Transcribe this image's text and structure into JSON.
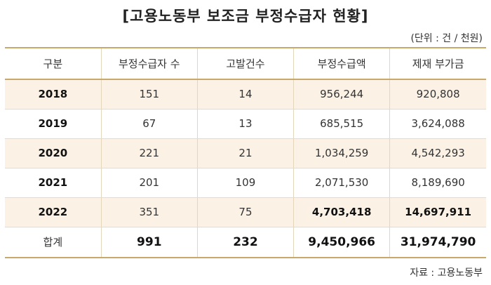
{
  "title": "[고용노동부 보조금 부정수급자 현황]",
  "unit": "(단위 : 건 / 천원)",
  "table": {
    "headers": [
      "구분",
      "부정수급자 수",
      "고발건수",
      "부정수급액",
      "제재 부가금"
    ],
    "rows": [
      [
        "2018",
        "151",
        "14",
        "956,244",
        "920,808"
      ],
      [
        "2019",
        "67",
        "13",
        "685,515",
        "3,624,088"
      ],
      [
        "2020",
        "221",
        "21",
        "1,034,259",
        "4,542,293"
      ],
      [
        "2021",
        "201",
        "109",
        "2,071,530",
        "8,189,690"
      ],
      [
        "2022",
        "351",
        "75",
        "4,703,418",
        "14,697,911"
      ]
    ],
    "total": [
      "합계",
      "991",
      "232",
      "9,450,966",
      "31,974,790"
    ]
  },
  "source": "자료 : 고용노동부"
}
